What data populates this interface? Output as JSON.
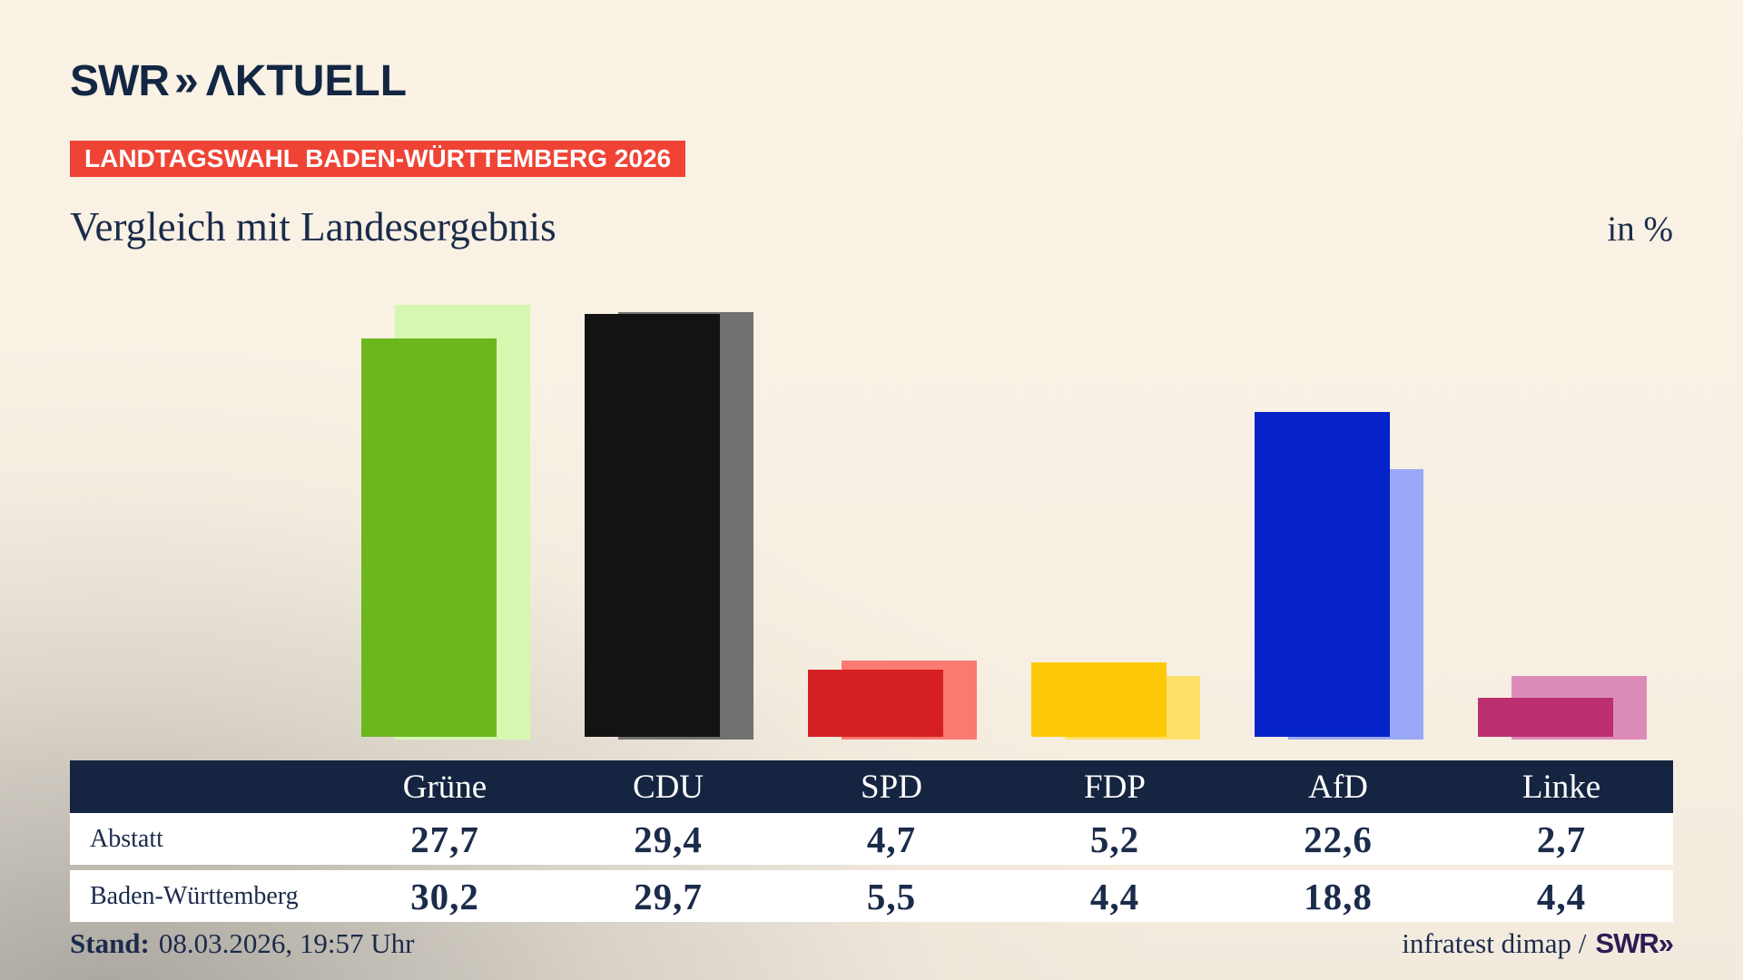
{
  "logo": {
    "swr": "SWR",
    "chevron": "»",
    "aktuell": "ΛKTUELL"
  },
  "badge": "LANDTAGSWAHL BADEN-WÜRTTEMBERG 2026",
  "title": "Vergleich mit Landesergebnis",
  "unit_label": "in %",
  "footer": {
    "stand_label": "Stand:",
    "stand_value": "08.03.2026, 19:57 Uhr",
    "source_text": "infratest dimap /",
    "source_logo": "SWR»"
  },
  "colors": {
    "navy": "#152440",
    "badge_red": "#ef4435",
    "background_cream": "#f8f0e3",
    "footer_logo_purple": "#2e1c55"
  },
  "chart_data": {
    "type": "bar",
    "title": "Vergleich mit Landesergebnis",
    "unit": "in %",
    "categories": [
      "Grüne",
      "CDU",
      "SPD",
      "FDP",
      "AfD",
      "Linke"
    ],
    "series": [
      {
        "name": "Abstatt",
        "values": [
          27.7,
          29.4,
          4.7,
          5.2,
          22.6,
          2.7
        ],
        "colors": [
          "#6db71e",
          "#131313",
          "#d42021",
          "#fdc907",
          "#0523c8",
          "#bb2f71"
        ]
      },
      {
        "name": "Baden-Württemberg",
        "values": [
          30.2,
          29.7,
          5.5,
          4.4,
          18.8,
          4.4
        ],
        "colors": [
          "#d6f7b0",
          "#717171",
          "#f97a70",
          "#fde06a",
          "#99a9f8",
          "#dc8bb8"
        ]
      }
    ],
    "ylim": [
      0,
      32
    ],
    "grid": false,
    "axes_shown": false,
    "legend_position": "table-row-labels",
    "value_format": "decimal-comma"
  }
}
